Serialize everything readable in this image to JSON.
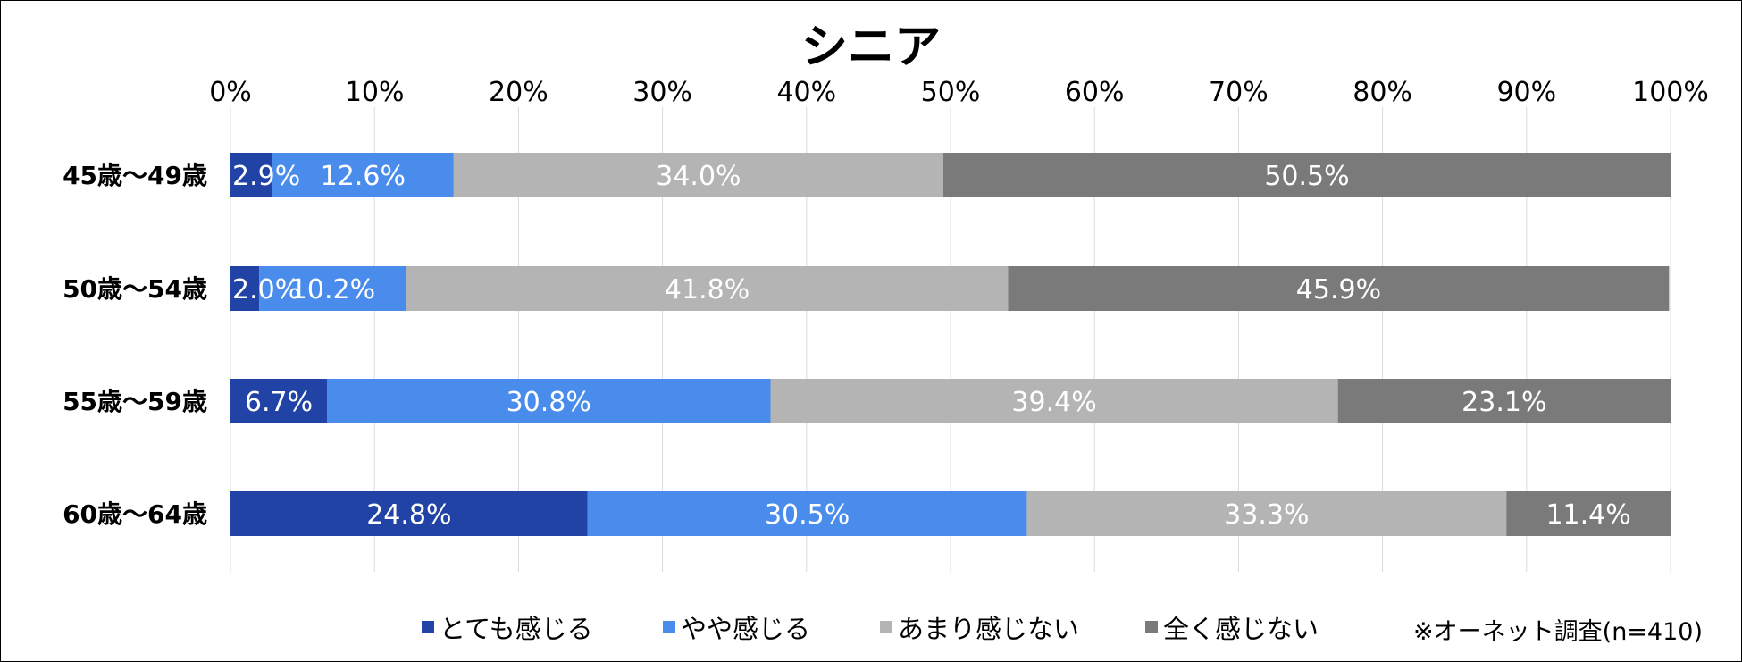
{
  "chart_data": {
    "type": "bar",
    "orientation": "horizontal",
    "stacked": true,
    "title": "シニア",
    "categories": [
      "45歳～49歳",
      "50歳～54歳",
      "55歳～59歳",
      "60歳～64歳"
    ],
    "x_ticks": [
      "0%",
      "10%",
      "20%",
      "30%",
      "40%",
      "50%",
      "60%",
      "70%",
      "80%",
      "90%",
      "100%"
    ],
    "xlim": [
      0,
      100
    ],
    "x_axis_position": "top",
    "grid": true,
    "legend_position": "bottom",
    "series": [
      {
        "name": "とても感じる",
        "color": "#2243a6",
        "values": [
          2.9,
          2.0,
          6.7,
          24.8
        ],
        "labels": [
          "2.9%",
          "2.0%",
          "6.7%",
          "24.8%"
        ]
      },
      {
        "name": "やや感じる",
        "color": "#4a8cec",
        "values": [
          12.6,
          10.2,
          30.8,
          30.5
        ],
        "labels": [
          "12.6%",
          "10.2%",
          "30.8%",
          "30.5%"
        ]
      },
      {
        "name": "あまり感じない",
        "color": "#b4b4b4",
        "values": [
          34.0,
          41.8,
          39.4,
          33.3
        ],
        "labels": [
          "34.0%",
          "41.8%",
          "39.4%",
          "33.3%"
        ]
      },
      {
        "name": "全く感じない",
        "color": "#7a7a7a",
        "values": [
          50.5,
          45.9,
          23.1,
          11.4
        ],
        "labels": [
          "50.5%",
          "45.9%",
          "23.1%",
          "11.4%"
        ]
      }
    ],
    "footnote": "※オーネット調査(n=410)"
  }
}
